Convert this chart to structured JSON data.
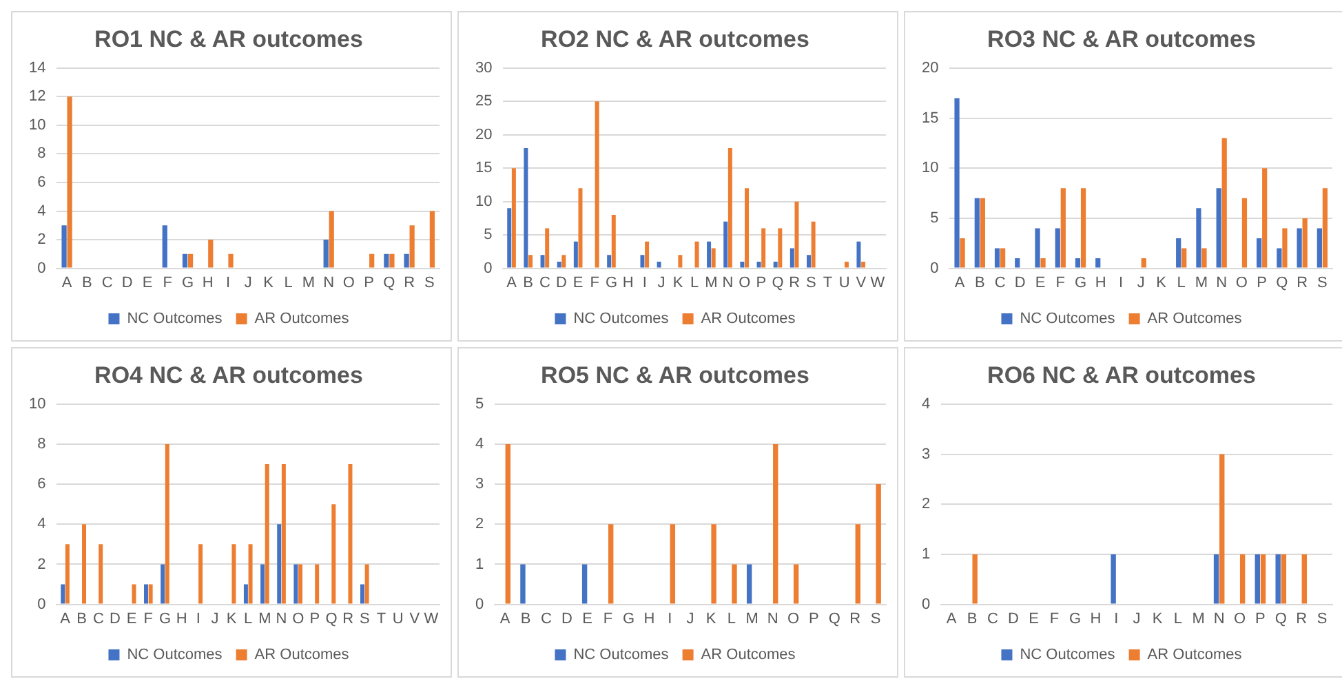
{
  "chart_data": [
    {
      "type": "bar",
      "title": "RO1 NC & AR outcomes",
      "categories": [
        "A",
        "B",
        "C",
        "D",
        "E",
        "F",
        "G",
        "H",
        "I",
        "J",
        "K",
        "L",
        "M",
        "N",
        "O",
        "P",
        "Q",
        "R",
        "S"
      ],
      "series": [
        {
          "name": "NC Outcomes",
          "color": "#4472c4",
          "values": [
            3,
            0,
            0,
            0,
            0,
            3,
            1,
            0,
            0,
            0,
            0,
            0,
            0,
            2,
            0,
            0,
            1,
            1,
            0
          ]
        },
        {
          "name": "AR Outcomes",
          "color": "#ed7d31",
          "values": [
            12,
            0,
            0,
            0,
            0,
            0,
            1,
            2,
            1,
            0,
            0,
            0,
            0,
            4,
            0,
            1,
            1,
            3,
            4
          ]
        }
      ],
      "ylim": [
        0,
        14
      ],
      "yticks": [
        0,
        2,
        4,
        6,
        8,
        10,
        12,
        14
      ],
      "grid": "y",
      "legend": "bottom"
    },
    {
      "type": "bar",
      "title": "RO2 NC & AR outcomes",
      "categories": [
        "A",
        "B",
        "C",
        "D",
        "E",
        "F",
        "G",
        "H",
        "I",
        "J",
        "K",
        "L",
        "M",
        "N",
        "O",
        "P",
        "Q",
        "R",
        "S",
        "T",
        "U",
        "V",
        "W"
      ],
      "series": [
        {
          "name": "NC Outcomes",
          "color": "#4472c4",
          "values": [
            9,
            18,
            2,
            1,
            4,
            0,
            2,
            0,
            2,
            1,
            0,
            0,
            4,
            7,
            1,
            1,
            1,
            3,
            2,
            0,
            0,
            4,
            0
          ]
        },
        {
          "name": "AR Outcomes",
          "color": "#ed7d31",
          "values": [
            15,
            2,
            6,
            2,
            12,
            25,
            8,
            0,
            4,
            0,
            2,
            4,
            3,
            18,
            12,
            6,
            6,
            10,
            7,
            0,
            1,
            1,
            0
          ]
        }
      ],
      "ylim": [
        0,
        30
      ],
      "yticks": [
        0,
        5,
        10,
        15,
        20,
        25,
        30
      ],
      "grid": "y",
      "legend": "bottom"
    },
    {
      "type": "bar",
      "title": "RO3 NC & AR outcomes",
      "categories": [
        "A",
        "B",
        "C",
        "D",
        "E",
        "F",
        "G",
        "H",
        "I",
        "J",
        "K",
        "L",
        "M",
        "N",
        "O",
        "P",
        "Q",
        "R",
        "S"
      ],
      "series": [
        {
          "name": "NC Outcomes",
          "color": "#4472c4",
          "values": [
            17,
            7,
            2,
            1,
            4,
            4,
            1,
            1,
            0,
            0,
            0,
            3,
            6,
            8,
            0,
            3,
            2,
            4,
            4
          ]
        },
        {
          "name": "AR Outcomes",
          "color": "#ed7d31",
          "values": [
            3,
            7,
            2,
            0,
            1,
            8,
            8,
            0,
            0,
            1,
            0,
            2,
            2,
            13,
            7,
            10,
            4,
            5,
            8
          ]
        }
      ],
      "ylim": [
        0,
        20
      ],
      "yticks": [
        0,
        5,
        10,
        15,
        20
      ],
      "grid": "y",
      "legend": "bottom"
    },
    {
      "type": "bar",
      "title": "RO4 NC & AR outcomes",
      "categories": [
        "A",
        "B",
        "C",
        "D",
        "E",
        "F",
        "G",
        "H",
        "I",
        "J",
        "K",
        "L",
        "M",
        "N",
        "O",
        "P",
        "Q",
        "R",
        "S",
        "T",
        "U",
        "V",
        "W"
      ],
      "series": [
        {
          "name": "NC Outcomes",
          "color": "#4472c4",
          "values": [
            1,
            0,
            0,
            0,
            0,
            1,
            2,
            0,
            0,
            0,
            0,
            1,
            2,
            4,
            2,
            0,
            0,
            0,
            1,
            0,
            0,
            0,
            0
          ]
        },
        {
          "name": "AR Outcomes",
          "color": "#ed7d31",
          "values": [
            3,
            4,
            3,
            0,
            1,
            1,
            8,
            0,
            3,
            0,
            3,
            3,
            7,
            7,
            2,
            2,
            5,
            7,
            2,
            0,
            0,
            0,
            0
          ]
        }
      ],
      "ylim": [
        0,
        10
      ],
      "yticks": [
        0,
        2,
        4,
        6,
        8,
        10
      ],
      "grid": "y",
      "legend": "bottom"
    },
    {
      "type": "bar",
      "title": "RO5 NC & AR outcomes",
      "categories": [
        "A",
        "B",
        "C",
        "D",
        "E",
        "F",
        "G",
        "H",
        "I",
        "J",
        "K",
        "L",
        "M",
        "N",
        "O",
        "P",
        "Q",
        "R",
        "S"
      ],
      "series": [
        {
          "name": "NC Outcomes",
          "color": "#4472c4",
          "values": [
            0,
            1,
            0,
            0,
            1,
            0,
            0,
            0,
            0,
            0,
            0,
            0,
            1,
            0,
            0,
            0,
            0,
            0,
            0
          ]
        },
        {
          "name": "AR Outcomes",
          "color": "#ed7d31",
          "values": [
            4,
            0,
            0,
            0,
            0,
            2,
            0,
            0,
            2,
            0,
            2,
            1,
            0,
            4,
            1,
            0,
            0,
            2,
            3
          ]
        }
      ],
      "ylim": [
        0,
        5
      ],
      "yticks": [
        0,
        1,
        2,
        3,
        4,
        5
      ],
      "grid": "y",
      "legend": "bottom"
    },
    {
      "type": "bar",
      "title": "RO6 NC & AR outcomes",
      "categories": [
        "A",
        "B",
        "C",
        "D",
        "E",
        "F",
        "G",
        "H",
        "I",
        "J",
        "K",
        "L",
        "M",
        "N",
        "O",
        "P",
        "Q",
        "R",
        "S"
      ],
      "series": [
        {
          "name": "NC Outcomes",
          "color": "#4472c4",
          "values": [
            0,
            0,
            0,
            0,
            0,
            0,
            0,
            0,
            1,
            0,
            0,
            0,
            0,
            1,
            0,
            1,
            1,
            0,
            0
          ]
        },
        {
          "name": "AR Outcomes",
          "color": "#ed7d31",
          "values": [
            0,
            1,
            0,
            0,
            0,
            0,
            0,
            0,
            0,
            0,
            0,
            0,
            0,
            3,
            1,
            1,
            1,
            1,
            0
          ]
        }
      ],
      "ylim": [
        0,
        4
      ],
      "yticks": [
        0,
        1,
        2,
        3,
        4
      ],
      "grid": "y",
      "legend": "bottom"
    }
  ]
}
